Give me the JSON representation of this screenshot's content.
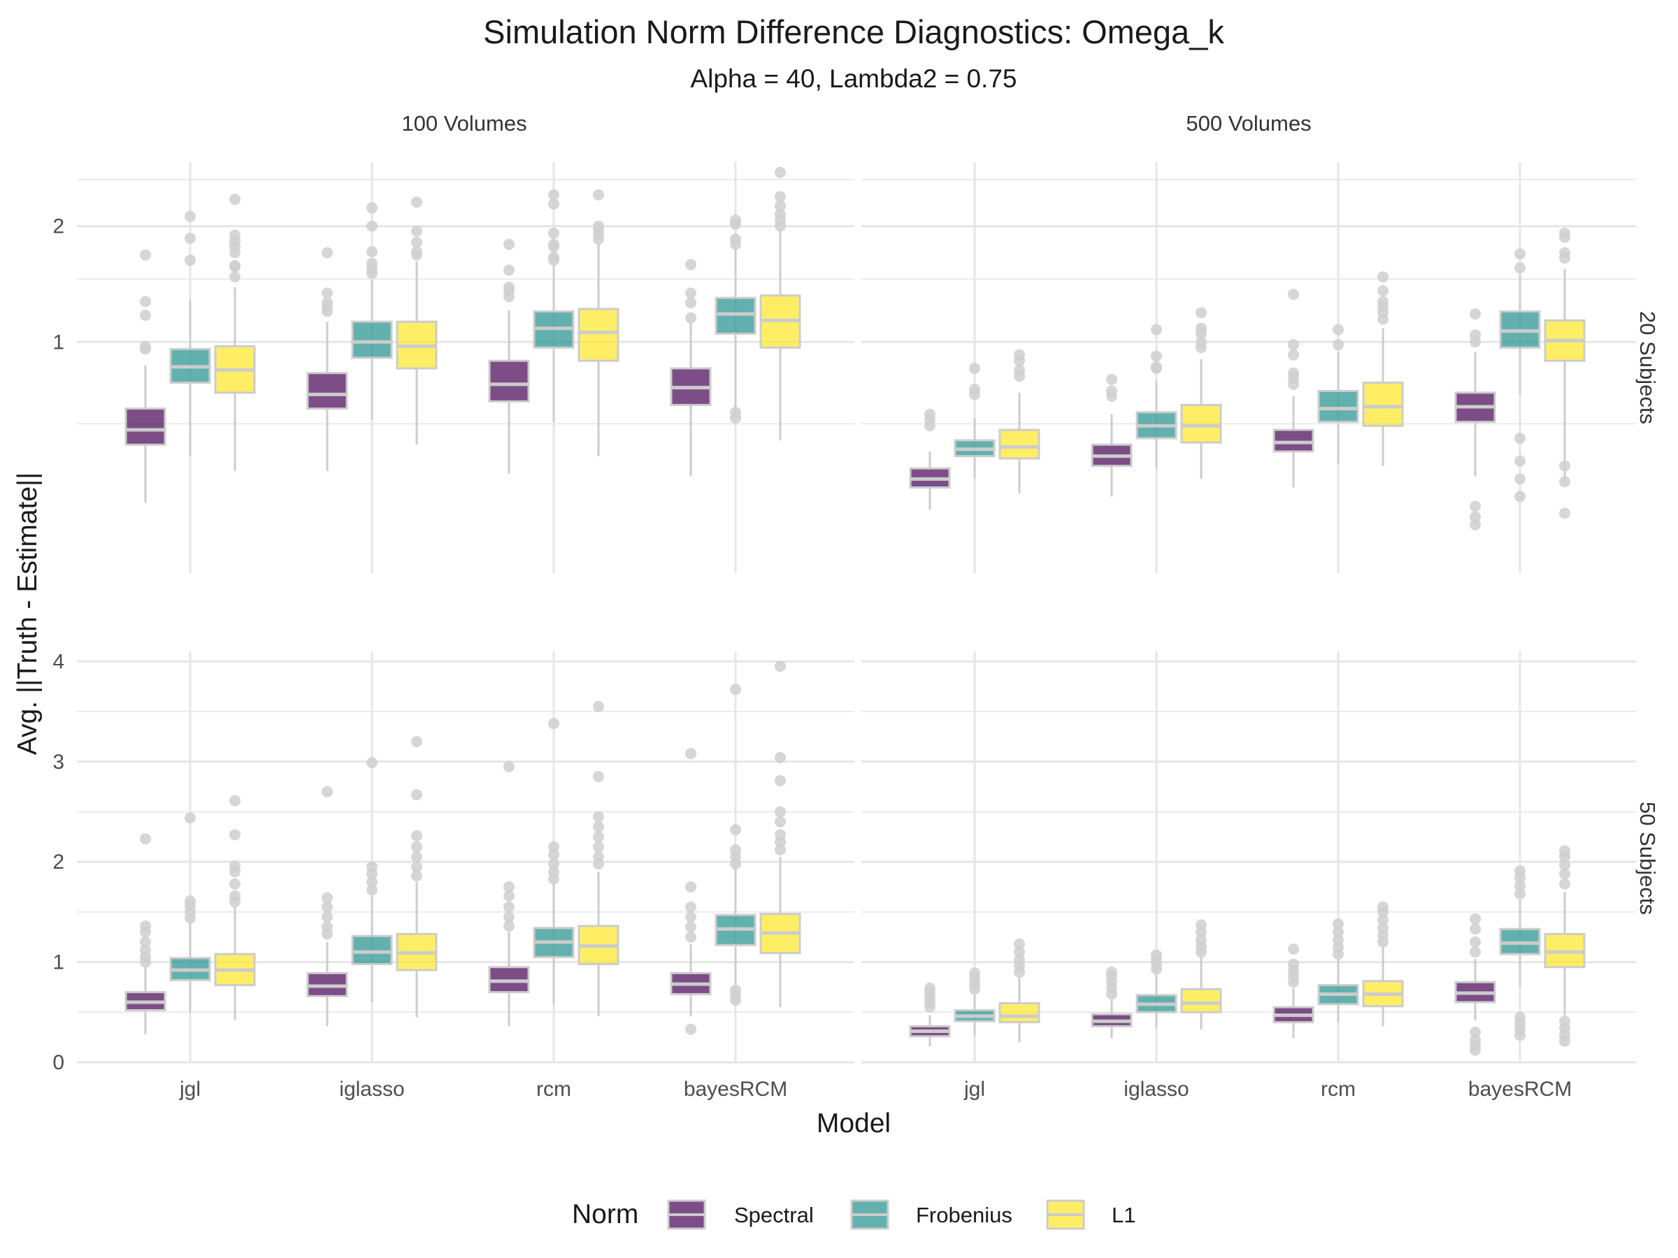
{
  "chart_data": {
    "type": "boxplot",
    "title": "Simulation Norm Difference Diagnostics: Omega_k",
    "subtitle": "Alpha = 40, Lambda2 = 0.75",
    "xlabel": "Model",
    "ylabel": "Avg. ||Truth - Estimate||",
    "categories": [
      "jgl",
      "iglasso",
      "rcm",
      "bayesRCM"
    ],
    "col_facets": [
      "100 Volumes",
      "500 Volumes"
    ],
    "row_facets": [
      "20 Subjects",
      "50 Subjects"
    ],
    "y_scale_free_by_row": true,
    "row_axes": [
      {
        "ylim": [
          0.03,
          2.7
        ],
        "ticks": [
          1,
          2
        ],
        "tick_labels": [
          "1",
          "2"
        ],
        "scale": "sqrt"
      },
      {
        "ylim": [
          0,
          4.1
        ],
        "ticks": [
          0,
          1,
          2,
          3,
          4
        ],
        "tick_labels": [
          "0",
          "1",
          "2",
          "3",
          "4"
        ],
        "scale": "linear"
      }
    ],
    "legend": {
      "title": "Norm",
      "position": "bottom",
      "entries": [
        {
          "name": "Spectral",
          "color": "#440154"
        },
        {
          "name": "Frobenius",
          "color": "#21908C"
        },
        {
          "name": "L1",
          "color": "#FDE725"
        }
      ]
    },
    "box_fill_alpha": 0.7,
    "box_outline_color": "#cccccc",
    "grid": true,
    "panels": [
      {
        "col": 0,
        "row": 0,
        "boxes": [
          {
            "model": "jgl",
            "norm": "Spectral",
            "min": 0.18,
            "q1": 0.4,
            "median": 0.47,
            "q3": 0.58,
            "max": 0.84,
            "outliers": [
              0.95,
              0.97,
              1.2,
              1.31,
              1.72
            ]
          },
          {
            "model": "jgl",
            "norm": "Frobenius",
            "min": 0.35,
            "q1": 0.73,
            "median": 0.83,
            "q3": 0.95,
            "max": 1.32,
            "outliers": [
              1.67,
              1.88,
              2.1
            ]
          },
          {
            "model": "jgl",
            "norm": "L1",
            "min": 0.29,
            "q1": 0.67,
            "median": 0.81,
            "q3": 0.97,
            "max": 1.43,
            "outliers": [
              1.52,
              1.61,
              1.62,
              1.74,
              1.8,
              1.85,
              1.91,
              2.28
            ]
          },
          {
            "model": "iglasso",
            "norm": "Spectral",
            "min": 0.29,
            "q1": 0.58,
            "median": 0.66,
            "q3": 0.79,
            "max": 1.15,
            "outliers": [
              1.23,
              1.27,
              1.3,
              1.38,
              1.74
            ]
          },
          {
            "model": "iglasso",
            "norm": "Frobenius",
            "min": 0.52,
            "q1": 0.89,
            "median": 1.0,
            "q3": 1.15,
            "max": 1.49,
            "outliers": [
              1.55,
              1.59,
              1.64,
              1.75,
              2.0,
              2.19
            ]
          },
          {
            "model": "iglasso",
            "norm": "L1",
            "min": 0.4,
            "q1": 0.82,
            "median": 0.97,
            "q3": 1.15,
            "max": 1.66,
            "outliers": [
              1.72,
              1.75,
              1.84,
              1.95,
              2.25
            ]
          },
          {
            "model": "rcm",
            "norm": "Spectral",
            "min": 0.28,
            "q1": 0.62,
            "median": 0.72,
            "q3": 0.87,
            "max": 1.24,
            "outliers": [
              1.35,
              1.4,
              1.43,
              1.58,
              1.82
            ]
          },
          {
            "model": "rcm",
            "norm": "Frobenius",
            "min": 0.51,
            "q1": 0.96,
            "median": 1.1,
            "q3": 1.23,
            "max": 1.63,
            "outliers": [
              1.67,
              1.7,
              1.8,
              1.82,
              1.93,
              2.23,
              2.33
            ]
          },
          {
            "model": "rcm",
            "norm": "L1",
            "min": 0.35,
            "q1": 0.87,
            "median": 1.07,
            "q3": 1.25,
            "max": 1.83,
            "outliers": [
              1.87,
              1.92,
              1.97,
              2.0,
              2.33
            ]
          },
          {
            "model": "bayesRCM",
            "norm": "Spectral",
            "min": 0.27,
            "q1": 0.6,
            "median": 0.7,
            "q3": 0.82,
            "max": 1.14,
            "outliers": [
              1.18,
              1.3,
              1.38,
              1.63
            ]
          },
          {
            "model": "bayesRCM",
            "norm": "Frobenius",
            "min": 0.55,
            "q1": 1.06,
            "median": 1.21,
            "q3": 1.34,
            "max": 1.8,
            "outliers": [
              0.53,
              0.56,
              1.82,
              1.87,
              2.02,
              2.06
            ]
          },
          {
            "model": "bayesRCM",
            "norm": "L1",
            "min": 0.42,
            "q1": 0.96,
            "median": 1.16,
            "q3": 1.36,
            "max": 1.97,
            "outliers": [
              2.0,
              2.06,
              2.12,
              2.21,
              2.31,
              2.58
            ]
          }
        ]
      },
      {
        "col": 1,
        "row": 0,
        "boxes": [
          {
            "model": "jgl",
            "norm": "Spectral",
            "min": 0.16,
            "q1": 0.23,
            "median": 0.26,
            "q3": 0.3,
            "max": 0.37,
            "outliers": [
              0.49,
              0.52,
              0.55
            ]
          },
          {
            "model": "jgl",
            "norm": "Frobenius",
            "min": 0.26,
            "q1": 0.35,
            "median": 0.38,
            "q3": 0.42,
            "max": 0.53,
            "outliers": [
              0.66,
              0.69,
              0.82
            ]
          },
          {
            "model": "jgl",
            "norm": "L1",
            "min": 0.21,
            "q1": 0.34,
            "median": 0.39,
            "q3": 0.47,
            "max": 0.67,
            "outliers": [
              0.77,
              0.81,
              0.87,
              0.91
            ]
          },
          {
            "model": "iglasso",
            "norm": "Spectral",
            "min": 0.2,
            "q1": 0.31,
            "median": 0.35,
            "q3": 0.4,
            "max": 0.55,
            "outliers": [
              0.65,
              0.68,
              0.75
            ]
          },
          {
            "model": "iglasso",
            "norm": "Frobenius",
            "min": 0.3,
            "q1": 0.43,
            "median": 0.49,
            "q3": 0.56,
            "max": 0.74,
            "outliers": [
              0.82,
              0.83,
              0.9,
              1.09
            ]
          },
          {
            "model": "iglasso",
            "norm": "L1",
            "min": 0.26,
            "q1": 0.41,
            "median": 0.49,
            "q3": 0.6,
            "max": 0.88,
            "outliers": [
              0.96,
              1.0,
              1.06,
              1.1,
              1.22
            ]
          },
          {
            "model": "rcm",
            "norm": "Spectral",
            "min": 0.23,
            "q1": 0.37,
            "median": 0.41,
            "q3": 0.47,
            "max": 0.65,
            "outliers": [
              0.72,
              0.76,
              0.79,
              0.91,
              0.98,
              1.37
            ]
          },
          {
            "model": "rcm",
            "norm": "Frobenius",
            "min": 0.32,
            "q1": 0.51,
            "median": 0.58,
            "q3": 0.68,
            "max": 0.93,
            "outliers": [
              0.98,
              1.09
            ]
          },
          {
            "model": "rcm",
            "norm": "L1",
            "min": 0.31,
            "q1": 0.49,
            "median": 0.59,
            "q3": 0.73,
            "max": 1.1,
            "outliers": [
              1.17,
              1.22,
              1.27,
              1.31,
              1.4,
              1.52
            ]
          },
          {
            "model": "bayesRCM",
            "norm": "Spectral",
            "min": 0.27,
            "q1": 0.51,
            "median": 0.59,
            "q3": 0.67,
            "max": 0.93,
            "outliers": [
              0.12,
              0.14,
              0.17,
              1.0,
              1.05,
              1.21
            ]
          },
          {
            "model": "bayesRCM",
            "norm": "Frobenius",
            "min": 0.66,
            "q1": 0.96,
            "median": 1.08,
            "q3": 1.23,
            "max": 1.54,
            "outliers": [
              0.2,
              0.26,
              0.33,
              0.43,
              1.6,
              1.73
            ]
          },
          {
            "model": "bayesRCM",
            "norm": "L1",
            "min": 0.25,
            "q1": 0.87,
            "median": 1.01,
            "q3": 1.16,
            "max": 1.59,
            "outliers": [
              0.15,
              0.25,
              0.31,
              1.69,
              1.74,
              1.89,
              1.93
            ]
          }
        ]
      },
      {
        "col": 0,
        "row": 1,
        "boxes": [
          {
            "model": "jgl",
            "norm": "Spectral",
            "min": 0.28,
            "q1": 0.52,
            "median": 0.6,
            "q3": 0.7,
            "max": 0.95,
            "outliers": [
              1.0,
              1.05,
              1.12,
              1.2,
              1.3,
              1.36,
              2.23
            ]
          },
          {
            "model": "jgl",
            "norm": "Frobenius",
            "min": 0.5,
            "q1": 0.82,
            "median": 0.92,
            "q3": 1.04,
            "max": 1.39,
            "outliers": [
              1.44,
              1.5,
              1.56,
              1.61,
              2.44
            ]
          },
          {
            "model": "jgl",
            "norm": "L1",
            "min": 0.42,
            "q1": 0.77,
            "median": 0.92,
            "q3": 1.08,
            "max": 1.55,
            "outliers": [
              1.6,
              1.66,
              1.78,
              1.9,
              1.96,
              2.27,
              2.61
            ]
          },
          {
            "model": "iglasso",
            "norm": "Spectral",
            "min": 0.36,
            "q1": 0.66,
            "median": 0.76,
            "q3": 0.89,
            "max": 1.2,
            "outliers": [
              1.28,
              1.35,
              1.45,
              1.55,
              1.64,
              2.7
            ]
          },
          {
            "model": "iglasso",
            "norm": "Frobenius",
            "min": 0.6,
            "q1": 0.98,
            "median": 1.1,
            "q3": 1.26,
            "max": 1.66,
            "outliers": [
              1.72,
              1.8,
              1.88,
              1.95,
              2.99
            ]
          },
          {
            "model": "iglasso",
            "norm": "L1",
            "min": 0.45,
            "q1": 0.92,
            "median": 1.09,
            "q3": 1.28,
            "max": 1.8,
            "outliers": [
              1.86,
              1.95,
              2.05,
              2.15,
              2.26,
              2.67,
              3.2
            ]
          },
          {
            "model": "rcm",
            "norm": "Spectral",
            "min": 0.36,
            "q1": 0.7,
            "median": 0.81,
            "q3": 0.95,
            "max": 1.3,
            "outliers": [
              1.36,
              1.45,
              1.55,
              1.66,
              1.75,
              2.95
            ]
          },
          {
            "model": "rcm",
            "norm": "Frobenius",
            "min": 0.58,
            "q1": 1.05,
            "median": 1.2,
            "q3": 1.34,
            "max": 1.78,
            "outliers": [
              1.83,
              1.9,
              1.98,
              2.07,
              2.15,
              3.38
            ]
          },
          {
            "model": "rcm",
            "norm": "L1",
            "min": 0.46,
            "q1": 0.98,
            "median": 1.16,
            "q3": 1.36,
            "max": 1.9,
            "outliers": [
              1.98,
              2.05,
              2.15,
              2.25,
              2.35,
              2.45,
              2.85,
              3.55
            ]
          },
          {
            "model": "bayesRCM",
            "norm": "Spectral",
            "min": 0.46,
            "q1": 0.68,
            "median": 0.78,
            "q3": 0.89,
            "max": 1.18,
            "outliers": [
              0.33,
              1.25,
              1.35,
              1.45,
              1.55,
              1.75,
              3.08
            ]
          },
          {
            "model": "bayesRCM",
            "norm": "Frobenius",
            "min": 0.78,
            "q1": 1.17,
            "median": 1.33,
            "q3": 1.47,
            "max": 1.93,
            "outliers": [
              0.62,
              0.67,
              0.72,
              1.98,
              2.05,
              2.12,
              2.32,
              3.72
            ]
          },
          {
            "model": "bayesRCM",
            "norm": "L1",
            "min": 0.55,
            "q1": 1.09,
            "median": 1.29,
            "q3": 1.48,
            "max": 2.05,
            "outliers": [
              2.12,
              2.2,
              2.27,
              2.4,
              2.5,
              2.81,
              3.04,
              3.95
            ]
          }
        ]
      },
      {
        "col": 1,
        "row": 1,
        "boxes": [
          {
            "model": "jgl",
            "norm": "Spectral",
            "min": 0.16,
            "q1": 0.26,
            "median": 0.31,
            "q3": 0.36,
            "max": 0.47,
            "outliers": [
              0.55,
              0.6,
              0.65,
              0.7,
              0.74
            ]
          },
          {
            "model": "jgl",
            "norm": "Frobenius",
            "min": 0.27,
            "q1": 0.41,
            "median": 0.46,
            "q3": 0.52,
            "max": 0.67,
            "outliers": [
              0.73,
              0.78,
              0.84,
              0.89
            ]
          },
          {
            "model": "jgl",
            "norm": "L1",
            "min": 0.2,
            "q1": 0.4,
            "median": 0.46,
            "q3": 0.59,
            "max": 0.85,
            "outliers": [
              0.9,
              0.96,
              1.02,
              1.1,
              1.18
            ]
          },
          {
            "model": "iglasso",
            "norm": "Spectral",
            "min": 0.24,
            "q1": 0.36,
            "median": 0.41,
            "q3": 0.48,
            "max": 0.62,
            "outliers": [
              0.68,
              0.74,
              0.8,
              0.86,
              0.9
            ]
          },
          {
            "model": "iglasso",
            "norm": "Frobenius",
            "min": 0.34,
            "q1": 0.5,
            "median": 0.58,
            "q3": 0.67,
            "max": 0.88,
            "outliers": [
              0.93,
              0.98,
              1.03,
              1.07
            ]
          },
          {
            "model": "iglasso",
            "norm": "L1",
            "min": 0.33,
            "q1": 0.5,
            "median": 0.59,
            "q3": 0.73,
            "max": 1.05,
            "outliers": [
              1.1,
              1.16,
              1.22,
              1.3,
              1.37
            ]
          },
          {
            "model": "rcm",
            "norm": "Spectral",
            "min": 0.24,
            "q1": 0.4,
            "median": 0.47,
            "q3": 0.55,
            "max": 0.74,
            "outliers": [
              0.8,
              0.86,
              0.92,
              0.98,
              1.13
            ]
          },
          {
            "model": "rcm",
            "norm": "Frobenius",
            "min": 0.4,
            "q1": 0.58,
            "median": 0.68,
            "q3": 0.77,
            "max": 1.03,
            "outliers": [
              1.08,
              1.15,
              1.22,
              1.3,
              1.38
            ]
          },
          {
            "model": "rcm",
            "norm": "L1",
            "min": 0.36,
            "q1": 0.56,
            "median": 0.68,
            "q3": 0.81,
            "max": 1.15,
            "outliers": [
              1.2,
              1.27,
              1.34,
              1.42,
              1.5,
              1.55
            ]
          },
          {
            "model": "bayesRCM",
            "norm": "Spectral",
            "min": 0.42,
            "q1": 0.6,
            "median": 0.69,
            "q3": 0.8,
            "max": 1.03,
            "outliers": [
              0.12,
              0.17,
              0.22,
              0.3,
              1.1,
              1.2,
              1.33,
              1.43
            ]
          },
          {
            "model": "bayesRCM",
            "norm": "Frobenius",
            "min": 0.75,
            "q1": 1.08,
            "median": 1.19,
            "q3": 1.33,
            "max": 1.62,
            "outliers": [
              0.27,
              0.33,
              0.39,
              0.45,
              1.68,
              1.76,
              1.84,
              1.91
            ]
          },
          {
            "model": "bayesRCM",
            "norm": "L1",
            "min": 0.47,
            "q1": 0.95,
            "median": 1.1,
            "q3": 1.28,
            "max": 1.7,
            "outliers": [
              0.21,
              0.27,
              0.34,
              0.41,
              1.78,
              1.88,
              1.97,
              2.05,
              2.11
            ]
          }
        ]
      }
    ]
  }
}
